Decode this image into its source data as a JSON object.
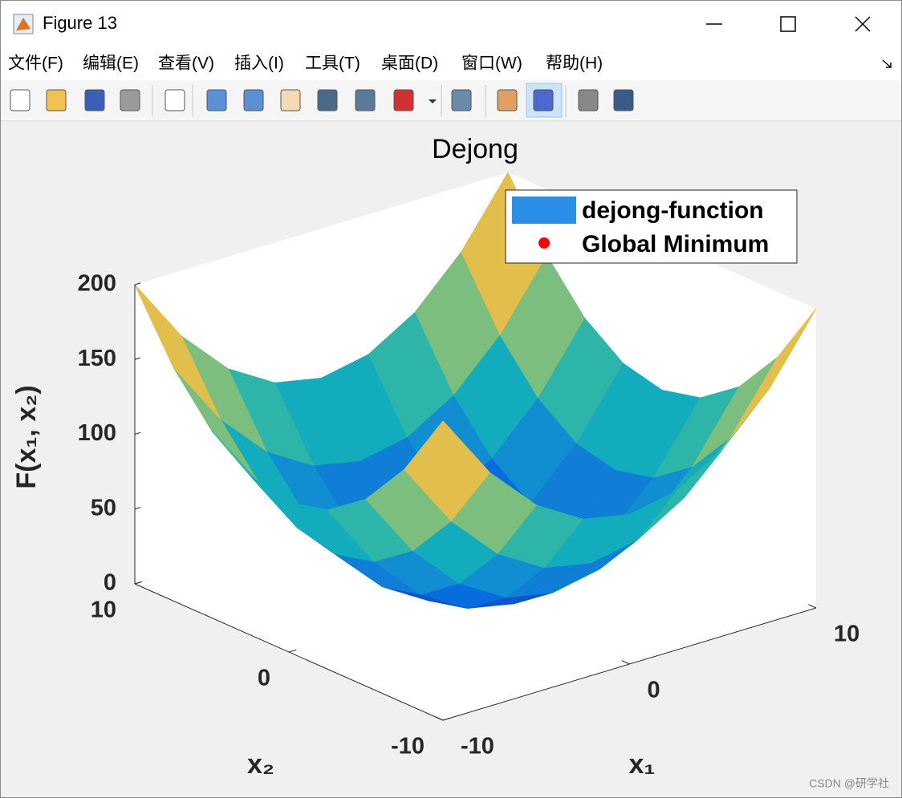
{
  "window": {
    "title": "Figure 13",
    "menu": [
      "文件(F)",
      "编辑(E)",
      "查看(V)",
      "插入(I)",
      "工具(T)",
      "桌面(D)",
      "窗口(W)",
      "帮助(H)"
    ],
    "watermark": "CSDN @研学社"
  },
  "chart_data": {
    "type": "surface",
    "title": "Dejong",
    "xlabel": "x₁",
    "ylabel": "x₂",
    "zlabel": "F(x₁, x₂)",
    "xlim": [
      -10,
      10
    ],
    "ylim": [
      -10,
      10
    ],
    "zlim": [
      0,
      200
    ],
    "xticks": [
      -10,
      0,
      10
    ],
    "yticks": [
      -10,
      0,
      10
    ],
    "zticks": [
      0,
      50,
      100,
      150,
      200
    ],
    "colormap": "parula",
    "legend": "northeast",
    "series": [
      {
        "name": "dejong-function",
        "color": "#2b8fe8",
        "x": [
          -10,
          -7.5,
          -5,
          -2.5,
          0,
          2.5,
          5,
          7.5,
          10
        ],
        "y": [
          -10,
          -7.5,
          -5,
          -2.5,
          0,
          2.5,
          5,
          7.5,
          10
        ],
        "z": [
          [
            200,
            156.25,
            125,
            106.25,
            100,
            106.25,
            125,
            156.25,
            200
          ],
          [
            156.25,
            112.5,
            81.25,
            62.5,
            56.25,
            62.5,
            81.25,
            112.5,
            156.25
          ],
          [
            125,
            81.25,
            50,
            31.25,
            25,
            31.25,
            50,
            81.25,
            125
          ],
          [
            106.25,
            62.5,
            31.25,
            12.5,
            6.25,
            12.5,
            31.25,
            62.5,
            106.25
          ],
          [
            100,
            56.25,
            25,
            6.25,
            0,
            6.25,
            25,
            56.25,
            100
          ],
          [
            106.25,
            62.5,
            31.25,
            12.5,
            6.25,
            12.5,
            31.25,
            62.5,
            106.25
          ],
          [
            125,
            81.25,
            50,
            31.25,
            25,
            31.25,
            50,
            81.25,
            125
          ],
          [
            156.25,
            112.5,
            81.25,
            62.5,
            56.25,
            62.5,
            81.25,
            112.5,
            156.25
          ],
          [
            200,
            156.25,
            125,
            106.25,
            100,
            106.25,
            125,
            156.25,
            200
          ]
        ]
      },
      {
        "name": "Global Minimum",
        "color": "#ff0000",
        "x": [
          0
        ],
        "y": [
          0
        ],
        "z": [
          0
        ]
      }
    ]
  }
}
